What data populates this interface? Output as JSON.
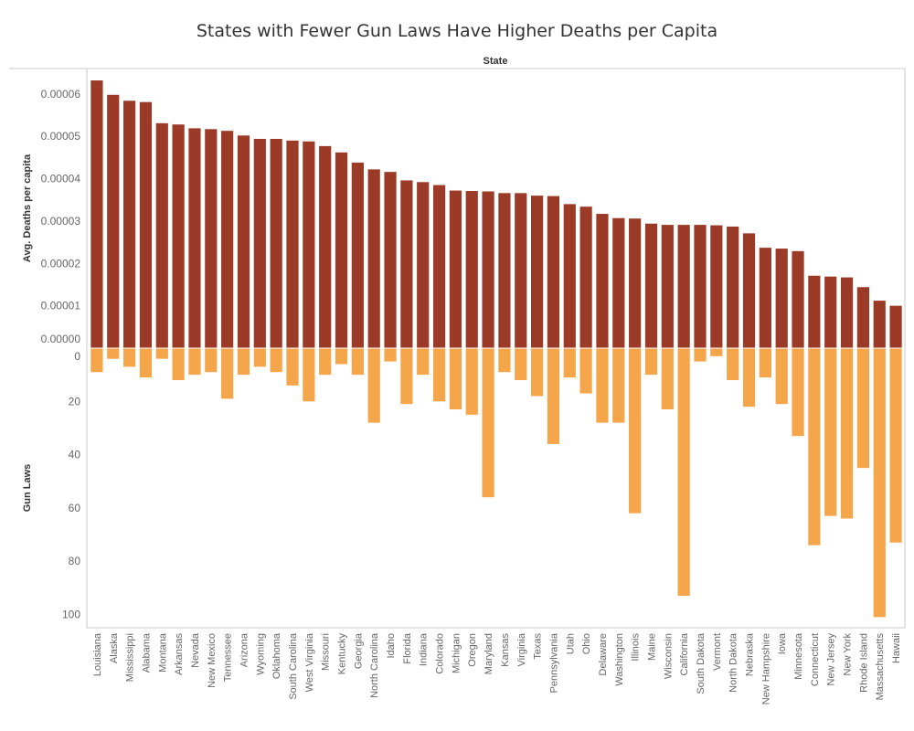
{
  "chart_data": {
    "type": "bar",
    "title": "States with Fewer Gun Laws Have Higher Deaths per Capita",
    "column_header": "State",
    "colors": {
      "deaths": "#9b3a26",
      "laws": "#f5a54a"
    },
    "categories": [
      "Louisiana",
      "Alaska",
      "Mississippi",
      "Alabama",
      "Montana",
      "Arkansas",
      "Nevada",
      "New Mexico",
      "Tennessee",
      "Arizona",
      "Wyoming",
      "Oklahoma",
      "South Carolina",
      "West Virginia",
      "Missouri",
      "Kentucky",
      "Georgia",
      "North Carolina",
      "Idaho",
      "Florida",
      "Indiana",
      "Colorado",
      "Michigan",
      "Oregon",
      "Maryland",
      "Kansas",
      "Virginia",
      "Texas",
      "Pennsylvania",
      "Utah",
      "Ohio",
      "Delaware",
      "Washington",
      "Illinois",
      "Maine",
      "Wisconsin",
      "California",
      "South Dakota",
      "Vermont",
      "North Dakota",
      "Nebraska",
      "New Hampshire",
      "Iowa",
      "Minnesota",
      "Connecticut",
      "New Jersey",
      "New York",
      "Rhode Island",
      "Massachusetts",
      "Hawaii"
    ],
    "series": [
      {
        "name": "Avg. Deaths per capita",
        "ylabel": "Avg. Deaths per capita",
        "ylim": [
          0,
          6.45e-05
        ],
        "ticks": [
          "0.00000",
          "0.00001",
          "0.00002",
          "0.00003",
          "0.00004",
          "0.00005",
          "0.00006"
        ],
        "values": [
          6.32e-05,
          5.98e-05,
          5.84e-05,
          5.81e-05,
          5.31e-05,
          5.28e-05,
          5.19e-05,
          5.17e-05,
          5.13e-05,
          5.02e-05,
          4.94e-05,
          4.94e-05,
          4.9e-05,
          4.88e-05,
          4.77e-05,
          4.62e-05,
          4.38e-05,
          4.22e-05,
          4.16e-05,
          3.96e-05,
          3.92e-05,
          3.85e-05,
          3.72e-05,
          3.71e-05,
          3.7e-05,
          3.66e-05,
          3.66e-05,
          3.6e-05,
          3.59e-05,
          3.4e-05,
          3.34e-05,
          3.17e-05,
          3.07e-05,
          3.06e-05,
          2.94e-05,
          2.91e-05,
          2.91e-05,
          2.91e-05,
          2.9e-05,
          2.87e-05,
          2.71e-05,
          2.37e-05,
          2.35e-05,
          2.29e-05,
          1.71e-05,
          1.69e-05,
          1.67e-05,
          1.44e-05,
          1.12e-05,
          1e-05
        ]
      },
      {
        "name": "Gun Laws",
        "ylabel": "Gun Laws",
        "ylim": [
          0,
          105
        ],
        "ticks": [
          "0",
          "20",
          "40",
          "60",
          "80",
          "100"
        ],
        "values": [
          9,
          4,
          7,
          11,
          4,
          12,
          10,
          9,
          19,
          10,
          7,
          9,
          14,
          20,
          10,
          6,
          10,
          28,
          5,
          21,
          10,
          20,
          23,
          25,
          56,
          9,
          12,
          18,
          36,
          11,
          17,
          28,
          28,
          62,
          10,
          23,
          93,
          5,
          3,
          12,
          22,
          11,
          21,
          33,
          74,
          63,
          64,
          45,
          101,
          73
        ]
      }
    ]
  }
}
